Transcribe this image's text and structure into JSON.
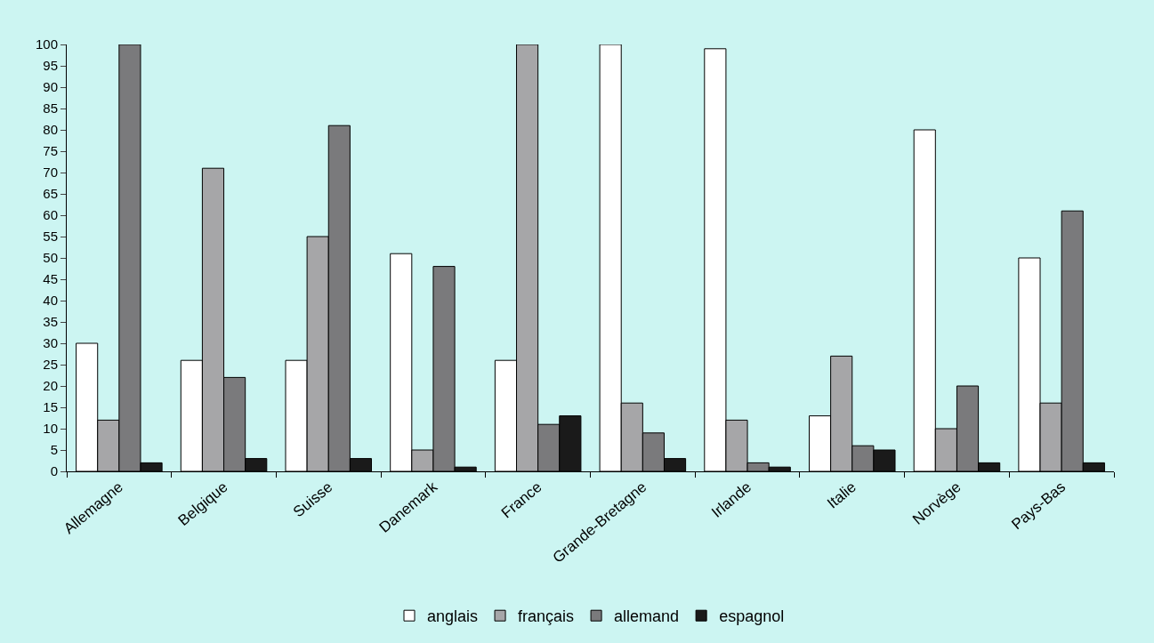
{
  "chart_data": {
    "type": "bar",
    "categories": [
      "Allemagne",
      "Belgique",
      "Suisse",
      "Danemark",
      "France",
      "Grande-Bretagne",
      "Irlande",
      "Italie",
      "Norvège",
      "Pays-Bas"
    ],
    "series": [
      {
        "name": "anglais",
        "color": "#ffffff",
        "values": [
          30,
          26,
          26,
          51,
          26,
          100,
          99,
          13,
          80,
          50
        ]
      },
      {
        "name": "français",
        "color": "#a6a6a8",
        "values": [
          12,
          71,
          55,
          5,
          100,
          16,
          12,
          27,
          10,
          16
        ]
      },
      {
        "name": "allemand",
        "color": "#7a7a7c",
        "values": [
          100,
          22,
          81,
          48,
          11,
          9,
          2,
          6,
          20,
          61
        ]
      },
      {
        "name": "espagnol",
        "color": "#1a1a1a",
        "values": [
          2,
          3,
          3,
          1,
          13,
          3,
          1,
          5,
          2,
          2
        ]
      }
    ],
    "ylim": [
      0,
      100
    ],
    "yticks": [
      0,
      5,
      10,
      15,
      20,
      25,
      30,
      35,
      40,
      45,
      50,
      55,
      60,
      65,
      70,
      75,
      80,
      85,
      90,
      95,
      100
    ],
    "grid": false,
    "legend": "bottom"
  }
}
